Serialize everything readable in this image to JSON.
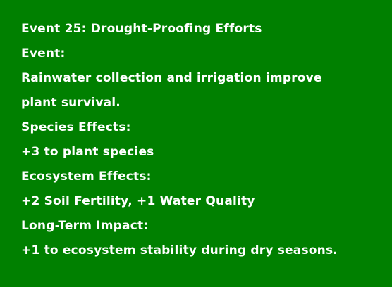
{
  "theme": {
    "background": "#008000",
    "text_color": "#ffffff"
  },
  "event_card": {
    "title": "Event 25: Drought-Proofing Efforts",
    "event_label": "Event:",
    "event_text_line1": "Rainwater collection and irrigation improve",
    "event_text_line2": "plant survival.",
    "species_label": "Species Effects:",
    "species_text": "+3 to plant species",
    "ecosystem_label": "Ecosystem Effects:",
    "ecosystem_text": "+2 Soil Fertility, +1 Water Quality",
    "impact_label": "Long-Term Impact:",
    "impact_text": "+1 to ecosystem stability during dry seasons."
  }
}
